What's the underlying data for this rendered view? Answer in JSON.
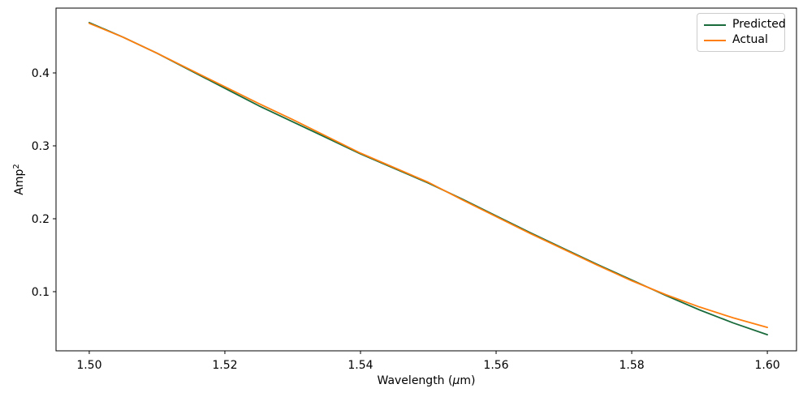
{
  "figure": {
    "background": "#ffffff",
    "spine_color": "#000000",
    "text_color": "#000000",
    "legend_border_color": "#cccccc"
  },
  "chart_data": {
    "type": "line",
    "title": "",
    "xlabel": "Wavelength (μm)",
    "xlabel_parts": {
      "pre": "Wavelength (",
      "italic": "μ",
      "post": "m)"
    },
    "ylabel": "Amp²",
    "ylabel_parts": {
      "text": "Amp",
      "sup": "2"
    },
    "grid": false,
    "legend_position": "upper right",
    "xlim": [
      1.4951,
      1.6043
    ],
    "ylim": [
      0.0189,
      0.4889
    ],
    "xticks": {
      "values": [
        1.5,
        1.52,
        1.54,
        1.56,
        1.58,
        1.6
      ],
      "labels": [
        "1.50",
        "1.52",
        "1.54",
        "1.56",
        "1.58",
        "1.60"
      ]
    },
    "yticks": {
      "values": [
        0.1,
        0.2,
        0.3,
        0.4
      ],
      "labels": [
        "0.1",
        "0.2",
        "0.3",
        "0.4"
      ]
    },
    "x": [
      1.5,
      1.505,
      1.51,
      1.515,
      1.52,
      1.525,
      1.53,
      1.535,
      1.54,
      1.545,
      1.55,
      1.555,
      1.56,
      1.565,
      1.57,
      1.575,
      1.58,
      1.585,
      1.59,
      1.595,
      1.6
    ],
    "series": [
      {
        "name": "Predicted",
        "color": "#1a6b3c",
        "values": [
          0.469,
          0.449,
          0.427,
          0.403,
          0.379,
          0.355,
          0.333,
          0.311,
          0.289,
          0.269,
          0.249,
          0.227,
          0.204,
          0.181,
          0.159,
          0.137,
          0.116,
          0.095,
          0.075,
          0.057,
          0.041
        ]
      },
      {
        "name": "Actual",
        "color": "#ff7f0e",
        "values": [
          0.468,
          0.449,
          0.427,
          0.404,
          0.381,
          0.358,
          0.336,
          0.313,
          0.29,
          0.27,
          0.25,
          0.226,
          0.203,
          0.18,
          0.158,
          0.136,
          0.115,
          0.096,
          0.079,
          0.064,
          0.051
        ]
      }
    ]
  }
}
